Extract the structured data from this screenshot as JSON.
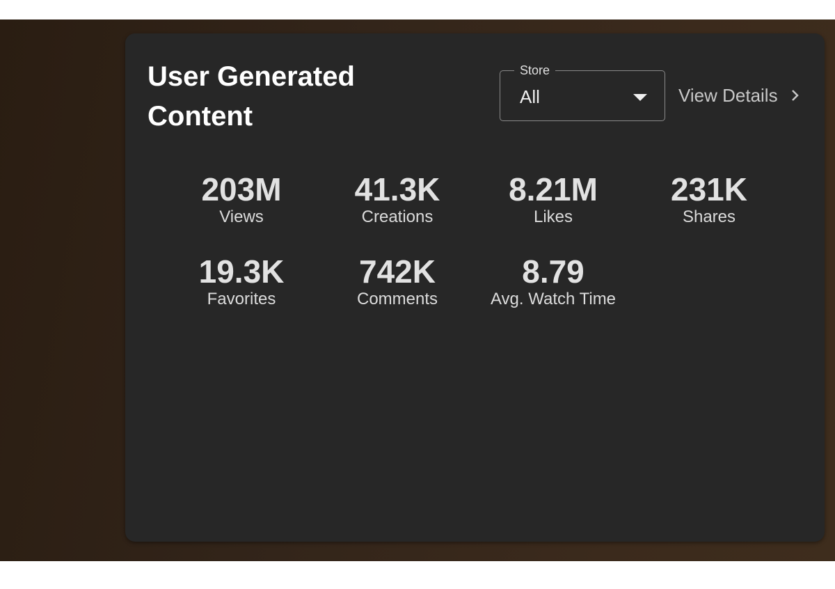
{
  "card": {
    "title": "User Generated Content",
    "filter": {
      "label": "Store",
      "value": "All"
    },
    "link": "View Details",
    "stats": [
      {
        "value": "203M",
        "label": "Views"
      },
      {
        "value": "41.3K",
        "label": "Creations"
      },
      {
        "value": "8.21M",
        "label": "Likes"
      },
      {
        "value": "231K",
        "label": "Shares"
      },
      {
        "value": "19.3K",
        "label": "Favorites"
      },
      {
        "value": "742K",
        "label": "Comments"
      },
      {
        "value": "8.79",
        "label": "Avg. Watch Time"
      }
    ]
  }
}
